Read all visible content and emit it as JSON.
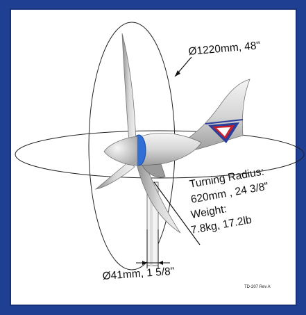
{
  "diagram": {
    "labels": {
      "rotor_diameter": "Ø1220mm, 48\"",
      "turning_radius_label": "Turning Radius:",
      "turning_radius_value": "620mm , 24 3/8\"",
      "weight_label": "Weight:",
      "weight_value": "7.8kg, 17.2lb",
      "mast_diameter": "Ø41mm, 1 5/8\"",
      "drawing_ref": "TD-207 Rev A"
    },
    "colors": {
      "border": "#1f3f93",
      "background": "#ffffff",
      "body": "#d9d9d9",
      "hub_accent": "#2f6fd6",
      "tail_logo_red": "#c8202a",
      "tail_logo_blue": "#2a3e9a"
    },
    "icons": [
      "wind-turbine-drawing",
      "tail-fin-logo"
    ]
  }
}
